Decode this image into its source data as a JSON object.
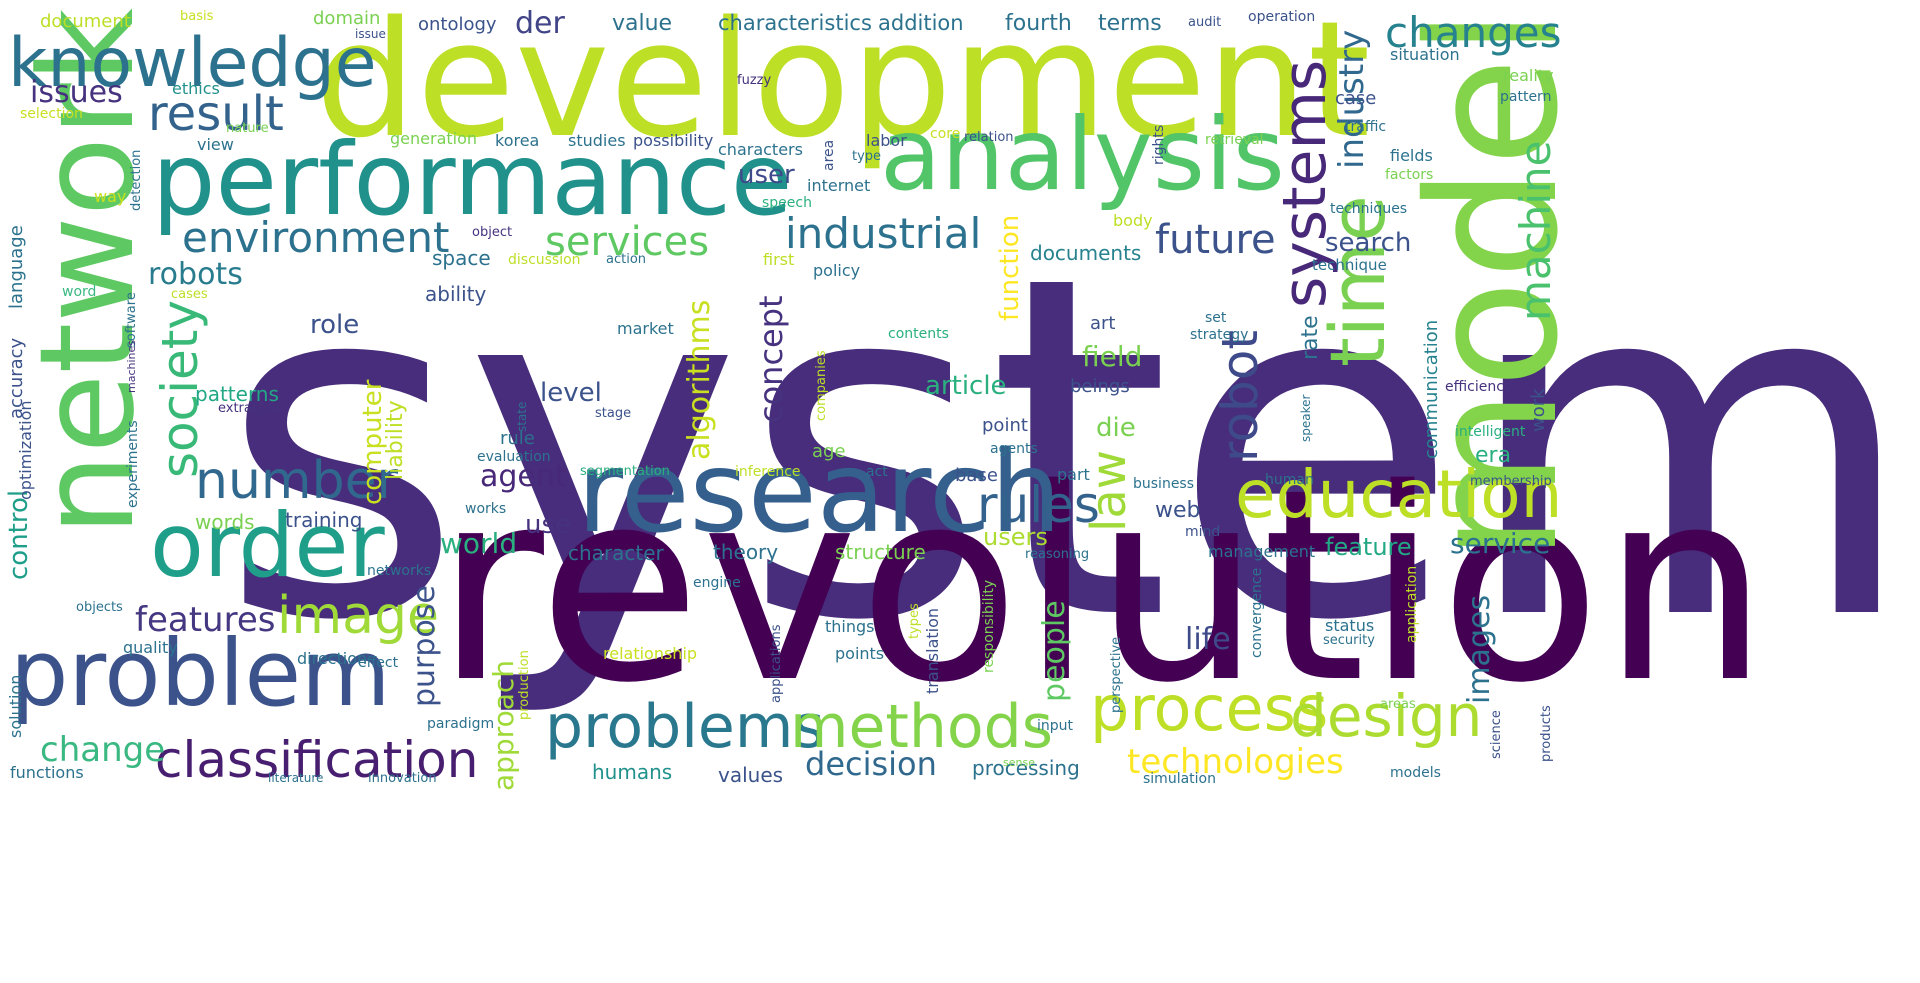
{
  "words": [
    {
      "text": "system",
      "color": "#472d7b"
    },
    {
      "text": "revolution",
      "color": "#440154"
    },
    {
      "text": "development",
      "color": "#bddf26"
    },
    {
      "text": "model",
      "color": "#84d44b"
    },
    {
      "text": "network",
      "color": "#5ec962"
    },
    {
      "text": "research",
      "color": "#355f8d"
    },
    {
      "text": "performance",
      "color": "#21918c"
    },
    {
      "text": "analysis",
      "color": "#52c569"
    },
    {
      "text": "problem",
      "color": "#3b528b"
    },
    {
      "text": "order",
      "color": "#1f9e89"
    },
    {
      "text": "knowledge",
      "color": "#2c728e"
    },
    {
      "text": "time",
      "color": "#7ad151"
    },
    {
      "text": "process",
      "color": "#bddf26"
    },
    {
      "text": "problems",
      "color": "#2a788e"
    },
    {
      "text": "methods",
      "color": "#84d44b"
    },
    {
      "text": "education",
      "color": "#bddf26"
    },
    {
      "text": "design",
      "color": "#addc30"
    },
    {
      "text": "classification",
      "color": "#481f70"
    },
    {
      "text": "systems",
      "color": "#482878"
    },
    {
      "text": "image",
      "color": "#a0da39"
    },
    {
      "text": "number",
      "color": "#31688e"
    },
    {
      "text": "society",
      "color": "#38b977"
    },
    {
      "text": "robot",
      "color": "#3e4a89"
    },
    {
      "text": "machine",
      "color": "#4ac16d"
    },
    {
      "text": "industrial",
      "color": "#2c728e"
    },
    {
      "text": "environment",
      "color": "#2c728e"
    },
    {
      "text": "result",
      "color": "#33638d"
    },
    {
      "text": "changes",
      "color": "#26828e"
    },
    {
      "text": "law",
      "color": "#a0da39"
    },
    {
      "text": "rules",
      "color": "#33638d"
    },
    {
      "text": "services",
      "color": "#5ec962"
    },
    {
      "text": "future",
      "color": "#3b528b"
    },
    {
      "text": "industry",
      "color": "#31688e"
    },
    {
      "text": "technologies",
      "color": "#fde725"
    },
    {
      "text": "change",
      "color": "#3ab882"
    },
    {
      "text": "decision",
      "color": "#31688e"
    },
    {
      "text": "features",
      "color": "#453781"
    },
    {
      "text": "approach",
      "color": "#a0da39"
    },
    {
      "text": "purpose",
      "color": "#3b528b"
    },
    {
      "text": "algorithms",
      "color": "#c8e020"
    },
    {
      "text": "concept",
      "color": "#46327e"
    },
    {
      "text": "function",
      "color": "#fde725"
    },
    {
      "text": "issues",
      "color": "#46327e"
    },
    {
      "text": "robots",
      "color": "#287c8e"
    },
    {
      "text": "agent",
      "color": "#482878"
    },
    {
      "text": "world",
      "color": "#2ab07f"
    },
    {
      "text": "service",
      "color": "#2c728e"
    },
    {
      "text": "feature",
      "color": "#22a884"
    },
    {
      "text": "images",
      "color": "#2c728e"
    },
    {
      "text": "people",
      "color": "#5ec962"
    },
    {
      "text": "life",
      "color": "#3e4a89"
    },
    {
      "text": "field",
      "color": "#7ad151"
    },
    {
      "text": "article",
      "color": "#2ab07f"
    },
    {
      "text": "role",
      "color": "#3b528b"
    },
    {
      "text": "control",
      "color": "#1f9e89"
    },
    {
      "text": "users",
      "color": "#addc30"
    },
    {
      "text": "user",
      "color": "#3e4a89"
    },
    {
      "text": "search",
      "color": "#3b528b"
    },
    {
      "text": "level",
      "color": "#3b528b"
    },
    {
      "text": "der",
      "color": "#414487"
    },
    {
      "text": "era",
      "color": "#29af7f"
    },
    {
      "text": "web",
      "color": "#3b528b"
    },
    {
      "text": "use",
      "color": "#46327e"
    },
    {
      "text": "die",
      "color": "#7ad151"
    },
    {
      "text": "computer",
      "color": "#c8e020"
    },
    {
      "text": "liability",
      "color": "#bddf26"
    },
    {
      "text": "communication",
      "color": "#26828e"
    },
    {
      "text": "rate",
      "color": "#2c728e"
    },
    {
      "text": "work",
      "color": "#3b528b"
    },
    {
      "text": "documents",
      "color": "#26828e"
    },
    {
      "text": "space",
      "color": "#2c728e"
    },
    {
      "text": "ability",
      "color": "#3b528b"
    },
    {
      "text": "training",
      "color": "#3b528b"
    },
    {
      "text": "words",
      "color": "#7ad151"
    },
    {
      "text": "patterns",
      "color": "#22a884"
    },
    {
      "text": "character",
      "color": "#2c728e"
    },
    {
      "text": "theory",
      "color": "#2c728e"
    },
    {
      "text": "structure",
      "color": "#7ad151"
    },
    {
      "text": "humans",
      "color": "#21918c"
    },
    {
      "text": "values",
      "color": "#3b528b"
    },
    {
      "text": "processing",
      "color": "#2c728e"
    },
    {
      "text": "management",
      "color": "#2c728e"
    },
    {
      "text": "art",
      "color": "#3b528b"
    },
    {
      "text": "beings",
      "color": "#3b528b"
    },
    {
      "text": "point",
      "color": "#3b528b"
    },
    {
      "text": "base",
      "color": "#3b528b"
    },
    {
      "text": "rule",
      "color": "#2c728e"
    },
    {
      "text": "age",
      "color": "#7ad151"
    },
    {
      "text": "value",
      "color": "#2c728e"
    },
    {
      "text": "terms",
      "color": "#2c728e"
    },
    {
      "text": "fourth",
      "color": "#2c728e"
    },
    {
      "text": "characteristics",
      "color": "#2c728e"
    },
    {
      "text": "addition",
      "color": "#2c728e"
    },
    {
      "text": "ontology",
      "color": "#3b528b"
    },
    {
      "text": "domain",
      "color": "#7ad151"
    },
    {
      "text": "document",
      "color": "#bddf26"
    },
    {
      "text": "basis",
      "color": "#c8e020"
    },
    {
      "text": "issue",
      "color": "#3b528b"
    },
    {
      "text": "operation",
      "color": "#3b528b"
    },
    {
      "text": "audit",
      "color": "#3b528b"
    },
    {
      "text": "situation",
      "color": "#2c728e"
    },
    {
      "text": "case",
      "color": "#3b528b"
    },
    {
      "text": "reality",
      "color": "#7ad151"
    },
    {
      "text": "pattern",
      "color": "#2c728e"
    },
    {
      "text": "fields",
      "color": "#2c728e"
    },
    {
      "text": "traffic",
      "color": "#2c728e"
    },
    {
      "text": "factors",
      "color": "#7ad151"
    },
    {
      "text": "techniques",
      "color": "#2c728e"
    },
    {
      "text": "technique",
      "color": "#2c728e"
    },
    {
      "text": "retrieval",
      "color": "#7ad151"
    },
    {
      "text": "rights",
      "color": "#3b528b"
    },
    {
      "text": "fuzzy",
      "color": "#46327e"
    },
    {
      "text": "korea",
      "color": "#2c728e"
    },
    {
      "text": "studies",
      "color": "#2c728e"
    },
    {
      "text": "possibility",
      "color": "#3b528b"
    },
    {
      "text": "characters",
      "color": "#2c728e"
    },
    {
      "text": "area",
      "color": "#3b528b"
    },
    {
      "text": "type",
      "color": "#2c728e"
    },
    {
      "text": "internet",
      "color": "#2c728e"
    },
    {
      "text": "speech",
      "color": "#2ab07f"
    },
    {
      "text": "body",
      "color": "#bddf26"
    },
    {
      "text": "labor",
      "color": "#3b528b"
    },
    {
      "text": "core",
      "color": "#c8e020"
    },
    {
      "text": "relation",
      "color": "#3b528b"
    },
    {
      "text": "generation",
      "color": "#7ad151"
    },
    {
      "text": "view",
      "color": "#2c728e"
    },
    {
      "text": "nature",
      "color": "#7ad151"
    },
    {
      "text": "ethics",
      "color": "#21918c"
    },
    {
      "text": "selection",
      "color": "#c8e020"
    },
    {
      "text": "way",
      "color": "#c8e020"
    },
    {
      "text": "detection",
      "color": "#2c728e"
    },
    {
      "text": "language",
      "color": "#2c728e"
    },
    {
      "text": "accuracy",
      "color": "#3b528b"
    },
    {
      "text": "optimization",
      "color": "#3b528b"
    },
    {
      "text": "word",
      "color": "#3ab882"
    },
    {
      "text": "cases",
      "color": "#bddf26"
    },
    {
      "text": "software",
      "color": "#2c728e"
    },
    {
      "text": "machines",
      "color": "#46327e"
    },
    {
      "text": "extraction",
      "color": "#46327e"
    },
    {
      "text": "experiments",
      "color": "#2c728e"
    },
    {
      "text": "object",
      "color": "#46327e"
    },
    {
      "text": "discussion",
      "color": "#bddf26"
    },
    {
      "text": "action",
      "color": "#2c728e"
    },
    {
      "text": "first",
      "color": "#bddf26"
    },
    {
      "text": "policy",
      "color": "#2c728e"
    },
    {
      "text": "market",
      "color": "#2c728e"
    },
    {
      "text": "contents",
      "color": "#2ab07f"
    },
    {
      "text": "companies",
      "color": "#bddf26"
    },
    {
      "text": "state",
      "color": "#2c728e"
    },
    {
      "text": "stage",
      "color": "#3b528b"
    },
    {
      "text": "evaluation",
      "color": "#2c728e"
    },
    {
      "text": "segmentation",
      "color": "#2ab07f"
    },
    {
      "text": "inference",
      "color": "#bddf26"
    },
    {
      "text": "act",
      "color": "#2c728e"
    },
    {
      "text": "agents",
      "color": "#2c728e"
    },
    {
      "text": "part",
      "color": "#2c728e"
    },
    {
      "text": "business",
      "color": "#2c728e"
    },
    {
      "text": "human",
      "color": "#2c728e"
    },
    {
      "text": "membership",
      "color": "#3b528b"
    },
    {
      "text": "intelligent",
      "color": "#2ab07f"
    },
    {
      "text": "efficiency",
      "color": "#46327e"
    },
    {
      "text": "speaker",
      "color": "#2c728e"
    },
    {
      "text": "works",
      "color": "#2c728e"
    },
    {
      "text": "mind",
      "color": "#3b528b"
    },
    {
      "text": "reasoning",
      "color": "#2c728e"
    },
    {
      "text": "networks",
      "color": "#2c728e"
    },
    {
      "text": "engine",
      "color": "#2c728e"
    },
    {
      "text": "objects",
      "color": "#2c728e"
    },
    {
      "text": "quality",
      "color": "#2c728e"
    },
    {
      "text": "direction",
      "color": "#2c728e"
    },
    {
      "text": "effect",
      "color": "#2c728e"
    },
    {
      "text": "relationship",
      "color": "#c8e020"
    },
    {
      "text": "production",
      "color": "#bddf26"
    },
    {
      "text": "things",
      "color": "#2c728e"
    },
    {
      "text": "points",
      "color": "#2c728e"
    },
    {
      "text": "applications",
      "color": "#3b528b"
    },
    {
      "text": "types",
      "color": "#bddf26"
    },
    {
      "text": "translation",
      "color": "#3b528b"
    },
    {
      "text": "responsibility",
      "color": "#7ad151"
    },
    {
      "text": "perspective",
      "color": "#2c728e"
    },
    {
      "text": "convergence",
      "color": "#2c728e"
    },
    {
      "text": "status",
      "color": "#2c728e"
    },
    {
      "text": "security",
      "color": "#2c728e"
    },
    {
      "text": "application",
      "color": "#bddf26"
    },
    {
      "text": "solution",
      "color": "#2c728e"
    },
    {
      "text": "functions",
      "color": "#2c728e"
    },
    {
      "text": "paradigm",
      "color": "#2c728e"
    },
    {
      "text": "literature",
      "color": "#2c728e"
    },
    {
      "text": "innovation",
      "color": "#2c728e"
    },
    {
      "text": "sense",
      "color": "#7ad151"
    },
    {
      "text": "input",
      "color": "#2c728e"
    },
    {
      "text": "simulation",
      "color": "#2c728e"
    },
    {
      "text": "models",
      "color": "#2c728e"
    },
    {
      "text": "areas",
      "color": "#7ad151"
    },
    {
      "text": "science",
      "color": "#3b528b"
    },
    {
      "text": "products",
      "color": "#3b528b"
    },
    {
      "text": "set",
      "color": "#2c728e"
    },
    {
      "text": "strategy",
      "color": "#2c728e"
    }
  ]
}
